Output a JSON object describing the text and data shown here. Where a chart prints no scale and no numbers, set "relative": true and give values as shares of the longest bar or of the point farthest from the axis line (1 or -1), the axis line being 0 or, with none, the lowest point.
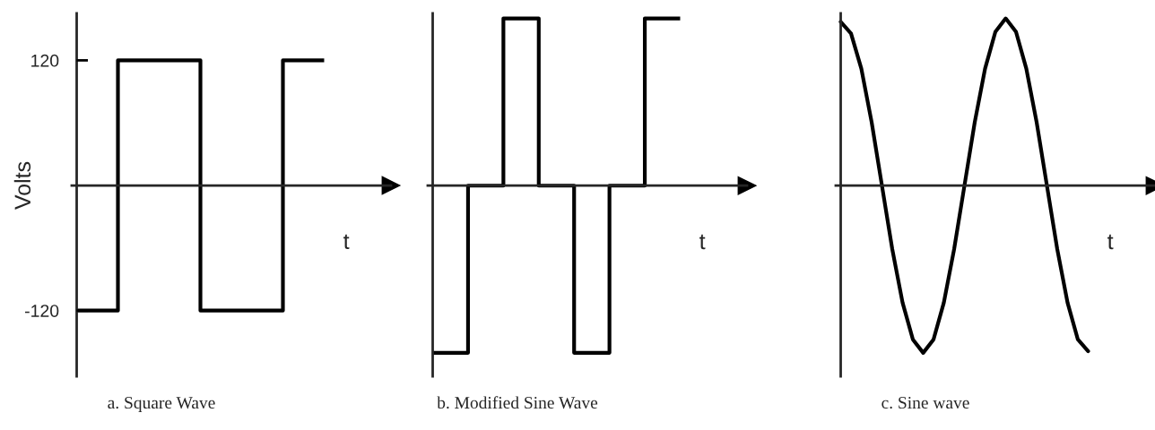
{
  "chart_data": [
    {
      "type": "step",
      "categories": [
        null,
        null,
        null,
        null,
        null,
        null,
        null
      ],
      "values": [
        -120,
        120,
        120,
        -120,
        -120,
        120,
        120
      ],
      "color": "#000000",
      "ylim": [
        -183,
        165
      ],
      "yticks": [
        -120,
        120
      ],
      "tick_labels": "y",
      "xlabel": "t",
      "ylabel": "Volts",
      "annotations": [
        "a. Square Wave"
      ]
    },
    {
      "type": "step",
      "relative": true,
      "categories": [
        null,
        null,
        null,
        null,
        null,
        null,
        null,
        null
      ],
      "values": [
        -1,
        0,
        1,
        0,
        -1,
        0,
        1,
        1
      ],
      "color": "#000000",
      "xlabel": "t",
      "annotations": [
        "b. Modified Sine Wave"
      ]
    },
    {
      "type": "line",
      "relative": true,
      "categories": [
        null,
        null,
        null,
        null,
        null,
        null,
        null,
        null,
        null,
        null,
        null,
        null,
        null,
        null,
        null,
        null,
        null,
        null,
        null,
        null,
        null,
        null,
        null,
        null,
        null
      ],
      "values": [
        0.98,
        0.91,
        0.7,
        0.38,
        0,
        -0.38,
        -0.7,
        -0.92,
        -1,
        -0.92,
        -0.7,
        -0.38,
        0,
        0.38,
        0.7,
        0.92,
        1,
        0.92,
        0.7,
        0.38,
        0,
        -0.38,
        -0.7,
        -0.92,
        -0.99
      ],
      "color": "#000000",
      "xlabel": "t",
      "annotations": [
        "c. Sine wave"
      ]
    }
  ]
}
